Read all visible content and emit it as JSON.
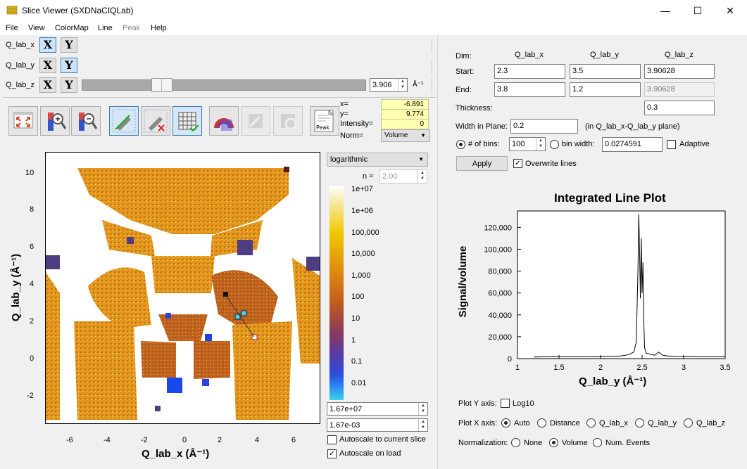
{
  "window": {
    "title": "Slice Viewer (SXDNaCIQLab)",
    "minimize": "—",
    "maximize": "☐",
    "close": "✕"
  },
  "menu": [
    "File",
    "View",
    "ColorMap",
    "Line",
    "Peak",
    "Help"
  ],
  "dimensions": [
    {
      "label": "Q_lab_x",
      "x": "X",
      "y": "Y",
      "selected": "X"
    },
    {
      "label": "Q_lab_y",
      "x": "X",
      "y": "Y",
      "selected": "Y"
    },
    {
      "label": "Q_lab_z",
      "x": "X",
      "y": "Y",
      "slider_value": "3.906",
      "unit": "Å⁻¹"
    }
  ],
  "coords": {
    "x_label": "x=",
    "x": "-6.891",
    "y_label": "y=",
    "y": "9.774",
    "intensity_label": "Intensity=",
    "intensity": "0",
    "norm_label": "Norm=",
    "norm": "Volume"
  },
  "colormap": {
    "scale": "logarithmic",
    "n_label": "n =",
    "n": "2.00",
    "ticks": [
      "1e+07",
      "1e+06",
      "100,000",
      "10,000",
      "1,000",
      "100",
      "10",
      "1",
      "0.1",
      "0.01"
    ],
    "max": "1.67e+07",
    "min": "1.67e-03",
    "autoscale_current": "Autoscale to current slice",
    "autoscale_current_checked": false,
    "autoscale_load": "Autoscale on load",
    "autoscale_load_checked": true
  },
  "slice_plot": {
    "xlabel": "Q_lab_x (Å⁻¹)",
    "ylabel": "Q_lab_y (Å⁻¹)",
    "xticks": [
      "-6",
      "-4",
      "-2",
      "0",
      "2",
      "4",
      "6"
    ],
    "yticks": [
      "10",
      "8",
      "6",
      "4",
      "2",
      "0",
      "-2"
    ]
  },
  "line_panel": {
    "dim_label": "Dim:",
    "dim_headers": [
      "Q_lab_x",
      "Q_lab_y",
      "Q_lab_z"
    ],
    "start_label": "Start:",
    "start": [
      "2.3",
      "3.5",
      "3.90628"
    ],
    "end_label": "End:",
    "end": [
      "3.8",
      "1.2",
      "3.90628"
    ],
    "thickness_label": "Thickness:",
    "thickness": "0.3",
    "width_label": "Width in Plane:",
    "width": "0.2",
    "width_hint": "(in Q_lab_x-Q_lab_y plane)",
    "bins_label": "# of bins:",
    "bins": "100",
    "binwidth_label": "bin width:",
    "binwidth": "0.0274591",
    "adaptive_label": "Adaptive",
    "apply_label": "Apply",
    "overwrite_label": "Overwrite lines",
    "plot_y_label": "Plot Y axis:",
    "log10_label": "Log10",
    "plot_x_label": "Plot X axis:",
    "plot_x_options": [
      "Auto",
      "Distance",
      "Q_lab_x",
      "Q_lab_y",
      "Q_lab_z"
    ],
    "plot_x_selected": "Auto",
    "norm_label": "Normalization:",
    "norm_options": [
      "None",
      "Volume",
      "Num. Events"
    ],
    "norm_selected": "Volume"
  },
  "chart_data": {
    "type": "line",
    "title": "Integrated Line Plot",
    "xlabel": "Q_lab_y (Å⁻¹)",
    "ylabel": "Signal/volume",
    "xlim": [
      1,
      3.5
    ],
    "ylim": [
      0,
      135000
    ],
    "xticks": [
      "1",
      "1.5",
      "2",
      "2.5",
      "3",
      "3.5"
    ],
    "yticks": [
      "0",
      "20,000",
      "40,000",
      "60,000",
      "80,000",
      "100,000",
      "120,000"
    ],
    "x": [
      1.2,
      1.4,
      1.6,
      1.8,
      2.0,
      2.1,
      2.2,
      2.25,
      2.3,
      2.35,
      2.4,
      2.43,
      2.45,
      2.46,
      2.47,
      2.48,
      2.49,
      2.5,
      2.51,
      2.52,
      2.53,
      2.55,
      2.6,
      2.65,
      2.7,
      2.75,
      2.8,
      2.9,
      3.0,
      3.2,
      3.5
    ],
    "y": [
      1500,
      1700,
      1600,
      1800,
      1700,
      2000,
      2200,
      2500,
      3000,
      4000,
      6000,
      15000,
      80000,
      132000,
      95000,
      55000,
      110000,
      60000,
      88000,
      35000,
      10000,
      5000,
      4000,
      3000,
      6000,
      3000,
      2500,
      2000,
      1900,
      1800,
      1800
    ]
  }
}
